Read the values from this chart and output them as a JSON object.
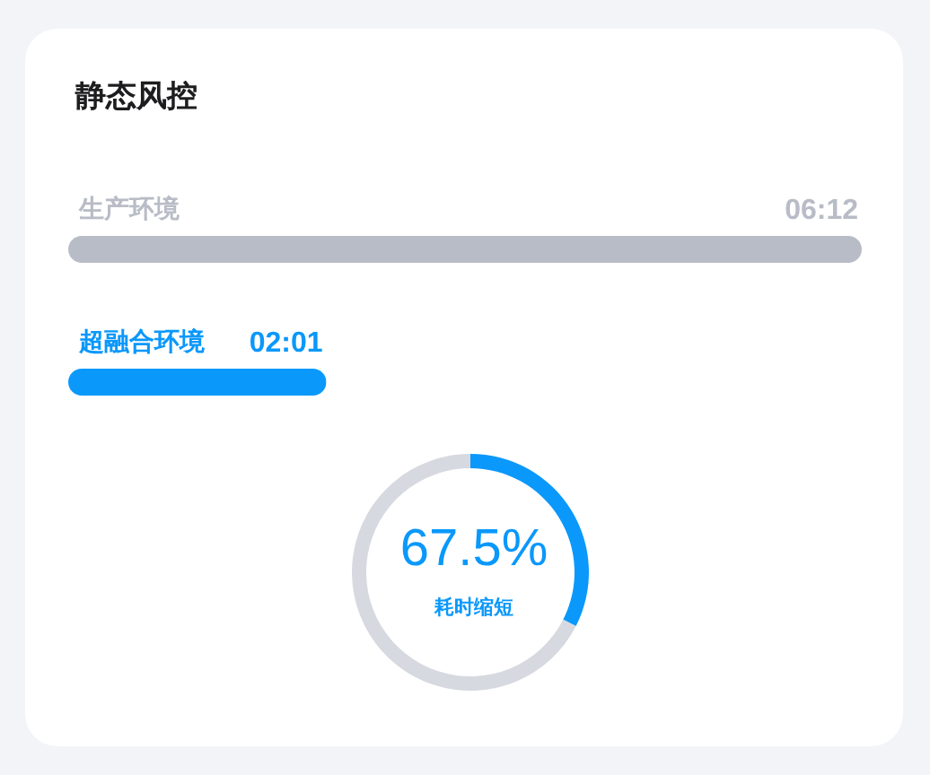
{
  "chart_data": [
    {
      "type": "bar",
      "orientation": "horizontal",
      "title": "静态风控",
      "categories": [
        "生产环境",
        "超融合环境"
      ],
      "values": [
        6.2,
        2.0167
      ],
      "colors": [
        "#b8bcc6",
        "#0a98fb"
      ],
      "value_labels": [
        "06:12",
        "02:01"
      ]
    },
    {
      "type": "donut",
      "categories": [
        null,
        null
      ],
      "values": [
        32.5,
        67.5
      ],
      "colors": [
        "#0a98fb",
        "#d6d9df"
      ],
      "annotations": [
        "67.5%",
        "耗时缩短"
      ]
    }
  ]
}
